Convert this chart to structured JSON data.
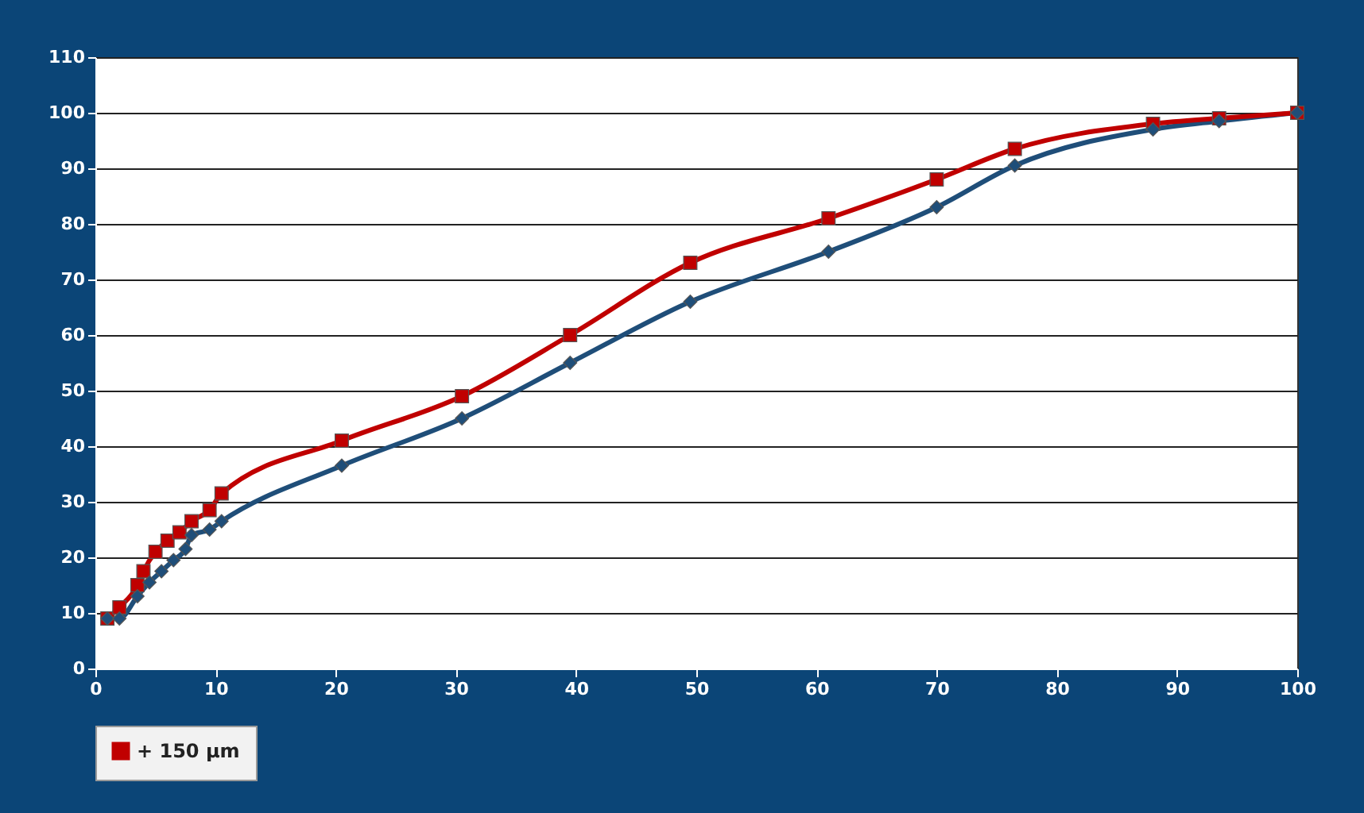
{
  "chart_data": {
    "type": "line",
    "xlim": [
      0,
      100
    ],
    "xticks": [
      0,
      10,
      20,
      30,
      40,
      50,
      60,
      70,
      80,
      90,
      100
    ],
    "ylim": [
      0,
      110
    ],
    "yticks": [
      0,
      10,
      20,
      30,
      40,
      50,
      60,
      70,
      80,
      90,
      100,
      110
    ],
    "grid": "y",
    "legend": "bottom",
    "line_style": "solid",
    "series": [
      {
        "name": null,
        "color": "#1f4e79",
        "marker": "diamond",
        "x": [
          1,
          2,
          3.5,
          4.5,
          5.5,
          6.5,
          7.5,
          8,
          9.5,
          10.5,
          20.5,
          30.5,
          39.5,
          49.5,
          61,
          70,
          76.5,
          88,
          93.5,
          100
        ],
        "values": [
          9,
          9,
          13,
          15.5,
          17.5,
          19.5,
          21.5,
          24,
          25,
          26.5,
          36.5,
          45,
          55,
          66,
          75,
          83,
          90.5,
          97,
          98.5,
          100
        ]
      },
      {
        "name": "+ 150 µm",
        "color": "#c00000",
        "marker": "square",
        "x": [
          1,
          2,
          3.5,
          4,
          5,
          6,
          7,
          8,
          9.5,
          10.5,
          20.5,
          30.5,
          39.5,
          49.5,
          61,
          70,
          76.5,
          88,
          93.5,
          100
        ],
        "values": [
          9,
          11,
          15,
          17.5,
          21,
          23,
          24.5,
          26.5,
          28.5,
          31.5,
          41,
          49,
          60,
          73,
          81,
          88,
          93.5,
          98,
          99,
          100
        ]
      }
    ]
  }
}
